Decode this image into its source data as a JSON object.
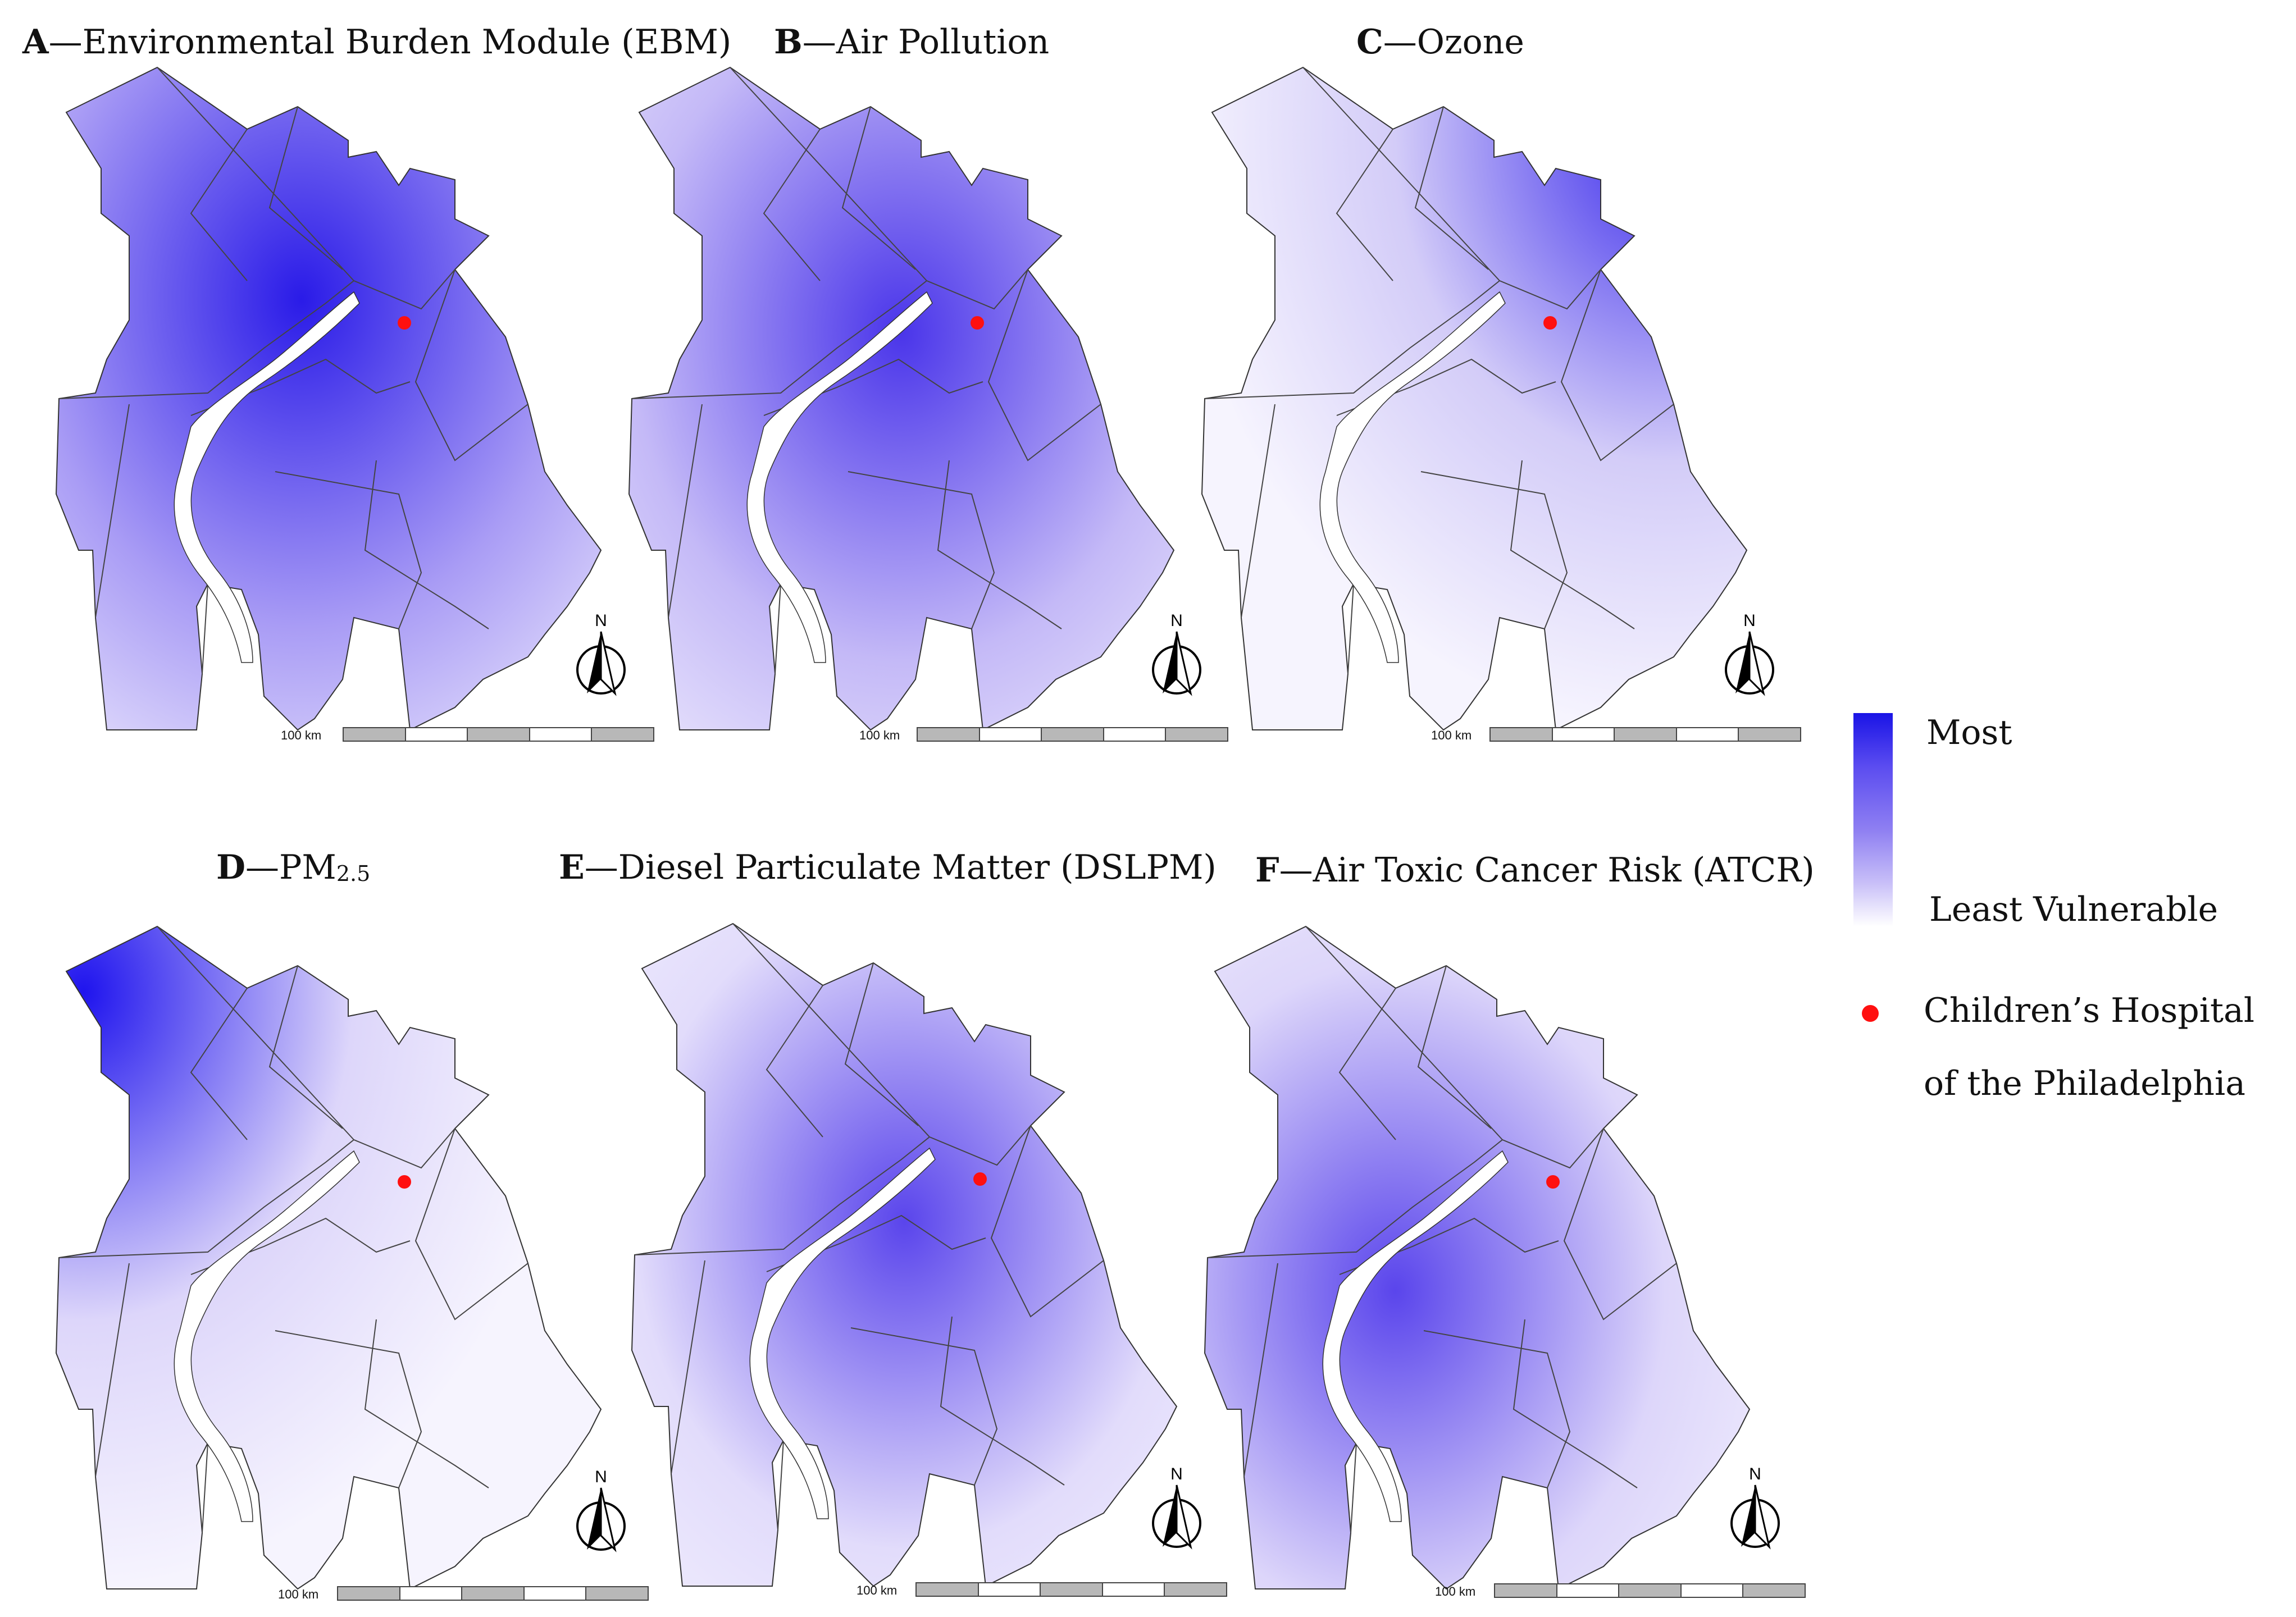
{
  "panels": [
    {
      "letter": "A",
      "title": "Environmental Burden Module (EBM)",
      "scale_label": "100 km",
      "north_label": "N",
      "color_dark": "#2a1be8",
      "color_light": "#a99cf5"
    },
    {
      "letter": "B",
      "title": "Air Pollution",
      "scale_label": "100 km",
      "north_label": "N",
      "color_dark": "#4a35ea",
      "color_light": "#c4b9f7"
    },
    {
      "letter": "C",
      "title": "Ozone",
      "scale_label": "100 km",
      "north_label": "N",
      "color_dark": "#3a2aec",
      "color_light": "#d3ccf8"
    },
    {
      "letter": "D",
      "title": "PM",
      "title_sub": "2.5",
      "scale_label": "100 km",
      "north_label": "N",
      "color_dark": "#1f14ee",
      "color_light": "#ddd6fa"
    },
    {
      "letter": "E",
      "title": "Diesel Particulate Matter (DSLPM)",
      "scale_label": "100 km",
      "north_label": "N",
      "color_dark": "#5a45ec",
      "color_light": "#e2dcfb"
    },
    {
      "letter": "F",
      "title": "Air Toxic Cancer Risk (ATCR)",
      "scale_label": "100 km",
      "north_label": "N",
      "color_dark": "#5a45ec",
      "color_light": "#ddd6fa"
    }
  ],
  "legend": {
    "most_label": "Most",
    "least_label": "Least Vulnerable",
    "hospital_label_line1": "Children’s  Hospital",
    "hospital_label_line2": "of the Philadelphia",
    "hospital_color": "#ff1010"
  }
}
